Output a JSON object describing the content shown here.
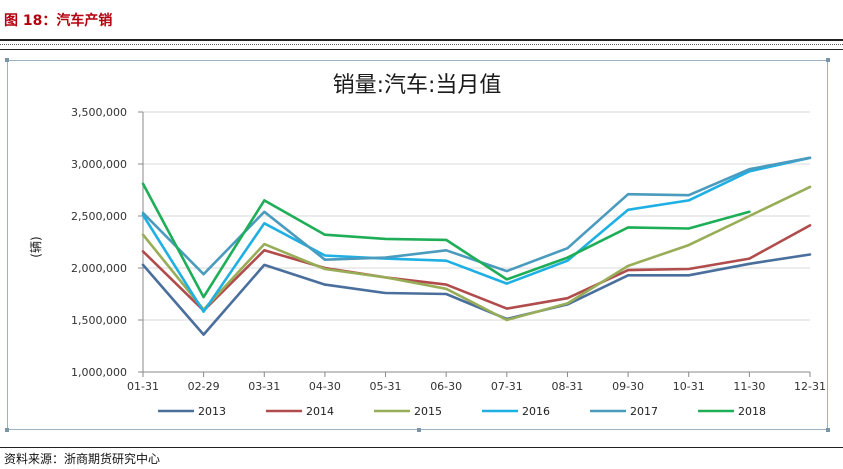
{
  "figure": {
    "caption": "图 18：汽车产销"
  },
  "source": {
    "text": "资料来源：浙商期货研究中心"
  },
  "colors": {
    "caption": "#b5000f",
    "frame": "#9cb2c2",
    "grid": "#d9d9d9"
  },
  "chart_data": {
    "type": "line",
    "title": "销量:汽车:当月值",
    "xlabel": "",
    "ylabel": "(辆)",
    "ylim": [
      1000000,
      3500000
    ],
    "yticks": [
      1000000,
      1500000,
      2000000,
      2500000,
      3000000,
      3500000
    ],
    "ytick_labels": [
      "1,000,000",
      "1,500,000",
      "2,000,000",
      "2,500,000",
      "3,000,000",
      "3,500,000"
    ],
    "categories": [
      "01-31",
      "02-29",
      "03-31",
      "04-30",
      "05-31",
      "06-30",
      "07-31",
      "08-31",
      "09-30",
      "10-31",
      "11-30",
      "12-31"
    ],
    "grid": "horizontal",
    "legend_position": "bottom",
    "series": [
      {
        "name": "2013",
        "color": "#4a6f9c",
        "values": [
          2030000,
          1360000,
          2030000,
          1840000,
          1760000,
          1750000,
          1510000,
          1650000,
          1930000,
          1930000,
          2040000,
          2130000
        ]
      },
      {
        "name": "2014",
        "color": "#b14c4c",
        "values": [
          2160000,
          1590000,
          2170000,
          2000000,
          1910000,
          1840000,
          1610000,
          1710000,
          1980000,
          1990000,
          2090000,
          2410000
        ]
      },
      {
        "name": "2015",
        "color": "#98ad57",
        "values": [
          2320000,
          1600000,
          2230000,
          1990000,
          1910000,
          1800000,
          1500000,
          1660000,
          2020000,
          2220000,
          2500000,
          2780000
        ]
      },
      {
        "name": "2016",
        "color": "#1fb0e3",
        "values": [
          2510000,
          1580000,
          2430000,
          2120000,
          2090000,
          2070000,
          1850000,
          2070000,
          2560000,
          2650000,
          2930000,
          3060000
        ]
      },
      {
        "name": "2017",
        "color": "#4a9bbd",
        "values": [
          2530000,
          1940000,
          2540000,
          2080000,
          2100000,
          2170000,
          1970000,
          2190000,
          2710000,
          2700000,
          2950000,
          3060000
        ]
      },
      {
        "name": "2018",
        "color": "#1eae57",
        "values": [
          2810000,
          1720000,
          2650000,
          2320000,
          2280000,
          2270000,
          1890000,
          2100000,
          2390000,
          2380000,
          2540000,
          null
        ]
      }
    ]
  }
}
